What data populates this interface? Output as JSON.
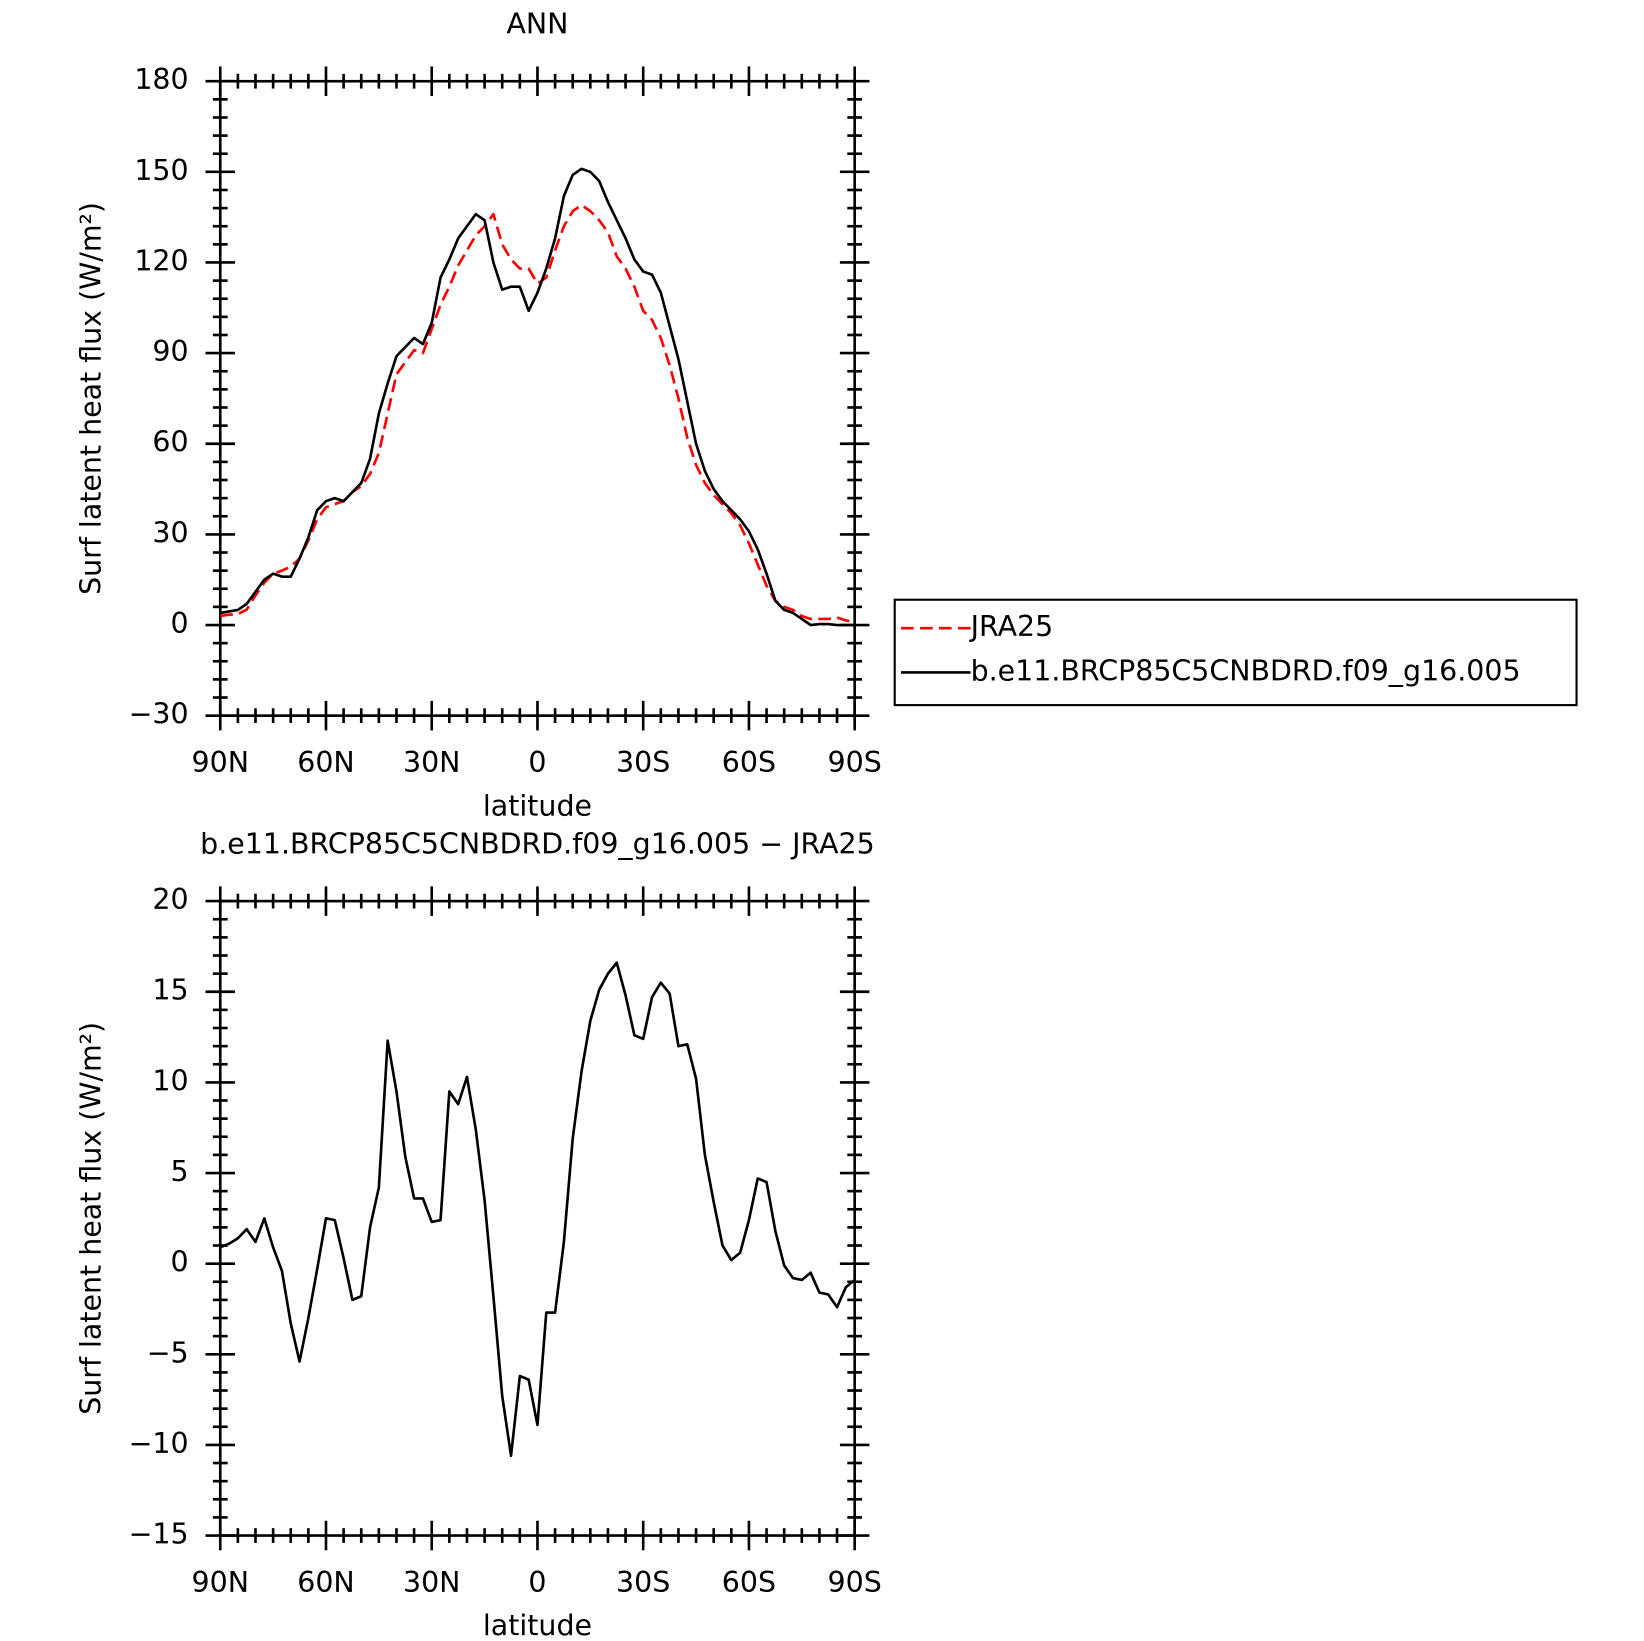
{
  "chart_data": [
    {
      "type": "line",
      "title": "ANN",
      "xlabel": "latitude",
      "ylabel": "Surf latent heat flux (W/m²)",
      "x": [
        90,
        87.5,
        85,
        82.5,
        80,
        77.5,
        75,
        72.5,
        70,
        67.5,
        65,
        62.5,
        60,
        57.5,
        55,
        52.5,
        50,
        47.5,
        45,
        42.5,
        40,
        37.5,
        35,
        32.5,
        30,
        27.5,
        25,
        22.5,
        20,
        17.5,
        15,
        12.5,
        10,
        7.5,
        5,
        2.5,
        0,
        -2.5,
        -5,
        -7.5,
        -10,
        -12.5,
        -15,
        -17.5,
        -20,
        -22.5,
        -25,
        -27.5,
        -30,
        -32.5,
        -35,
        -37.5,
        -40,
        -42.5,
        -45,
        -47.5,
        -50,
        -52.5,
        -55,
        -57.5,
        -60,
        -62.5,
        -65,
        -67.5,
        -70,
        -72.5,
        -75,
        -77.5,
        -80,
        -82.5,
        -85,
        -87.5,
        -90
      ],
      "series": [
        {
          "name": "JRA25",
          "color": "#ff0000",
          "dashed": true,
          "values": [
            3,
            3.4,
            3.6,
            5.1,
            9.8,
            14,
            17,
            18,
            19.3,
            22,
            28,
            35,
            39,
            40,
            41,
            44,
            46,
            50,
            57,
            70,
            83,
            87,
            91,
            90,
            98,
            106,
            112,
            119,
            124,
            129,
            132,
            136,
            126,
            121,
            118,
            118,
            113,
            115,
            124,
            132,
            137,
            139,
            137,
            134,
            130,
            122,
            118,
            112,
            104,
            101,
            95,
            86,
            75,
            62,
            53,
            47,
            43,
            40,
            37,
            33,
            27,
            20,
            13,
            8,
            6,
            5,
            3,
            2,
            2,
            2,
            2.5,
            1.5,
            1
          ]
        },
        {
          "name": "b.e11.BRCP85C5CNBDRD.f09_g16.005",
          "color": "#000000",
          "dashed": false,
          "values": [
            4,
            4.5,
            5,
            7,
            11,
            15,
            17,
            16,
            16,
            22,
            29,
            38,
            41,
            42,
            41,
            44,
            47,
            55,
            70,
            80,
            89,
            92,
            95,
            93,
            100,
            115,
            121,
            128,
            132,
            136,
            134,
            120,
            111,
            112,
            112,
            104,
            110,
            118,
            128,
            142,
            149,
            151,
            150,
            147,
            140,
            134,
            128,
            121,
            117,
            116,
            110,
            99,
            88,
            74,
            60,
            51,
            45,
            41,
            38,
            35,
            31,
            25,
            17,
            8,
            5,
            4,
            2,
            0,
            0.3,
            0.3,
            0,
            0,
            0
          ]
        }
      ],
      "xlim": [
        90,
        -90
      ],
      "xticks": [
        {
          "value": 90,
          "label": "90N"
        },
        {
          "value": 60,
          "label": "60N"
        },
        {
          "value": 30,
          "label": "30N"
        },
        0,
        {
          "value": -30,
          "label": "30S"
        },
        {
          "value": -60,
          "label": "60S"
        },
        {
          "value": -90,
          "label": "90S"
        }
      ],
      "ylim": [
        -30,
        180
      ],
      "yticks": [
        {
          "value": -30,
          "label": "−30"
        },
        0,
        30,
        60,
        90,
        120,
        150,
        180
      ],
      "legend": "right"
    },
    {
      "type": "line",
      "title": "b.e11.BRCP85C5CNBDRD.f09_g16.005 − JRA25",
      "xlabel": "latitude",
      "ylabel": "Surf latent heat flux (W/m²)",
      "x": [
        90,
        87.5,
        85,
        82.5,
        80,
        77.5,
        75,
        72.5,
        70,
        67.5,
        65,
        62.5,
        60,
        57.5,
        55,
        52.5,
        50,
        47.5,
        45,
        42.5,
        40,
        37.5,
        35,
        32.5,
        30,
        27.5,
        25,
        22.5,
        20,
        17.5,
        15,
        12.5,
        10,
        7.5,
        5,
        2.5,
        0,
        -2.5,
        -5,
        -7.5,
        -10,
        -12.5,
        -15,
        -17.5,
        -20,
        -22.5,
        -25,
        -27.5,
        -30,
        -32.5,
        -35,
        -37.5,
        -40,
        -42.5,
        -45,
        -47.5,
        -50,
        -52.5,
        -55,
        -57.5,
        -60,
        -62.5,
        -65,
        -67.5,
        -70,
        -72.5,
        -75,
        -77.5,
        -80,
        -82.5,
        -85,
        -87.5,
        -90
      ],
      "color": "#000000",
      "values": [
        0.9,
        1.1,
        1.4,
        1.9,
        1.2,
        2.5,
        0.9,
        -0.4,
        -3.3,
        -5.4,
        -3.0,
        -0.3,
        2.5,
        2.4,
        0.3,
        -2.0,
        -1.8,
        2.0,
        4.2,
        12.3,
        9.5,
        5.9,
        3.6,
        3.6,
        2.3,
        2.4,
        9.5,
        8.8,
        10.3,
        7.4,
        3.5,
        -1.8,
        -7.3,
        -10.6,
        -6.2,
        -6.4,
        -8.9,
        -2.7,
        -2.7,
        1.2,
        6.9,
        10.6,
        13.4,
        15.1,
        16.0,
        16.6,
        14.8,
        12.6,
        12.4,
        14.7,
        15.5,
        14.9,
        12.0,
        12.1,
        10.2,
        6.0,
        3.4,
        1.0,
        0.2,
        0.6,
        2.4,
        4.7,
        4.5,
        1.8,
        -0.1,
        -0.8,
        -0.9,
        -0.5,
        -1.6,
        -1.7,
        -2.4,
        -1.3,
        -0.9
      ],
      "xlim": [
        90,
        -90
      ],
      "xticks": [
        {
          "value": 90,
          "label": "90N"
        },
        {
          "value": 60,
          "label": "60N"
        },
        {
          "value": 30,
          "label": "30N"
        },
        0,
        {
          "value": -30,
          "label": "30S"
        },
        {
          "value": -60,
          "label": "60S"
        },
        {
          "value": -90,
          "label": "90S"
        }
      ],
      "ylim": [
        -15,
        20
      ],
      "yticks": [
        {
          "value": -15,
          "label": "−15"
        },
        {
          "value": -10,
          "label": "−10"
        },
        {
          "value": -5,
          "label": "−5"
        },
        0,
        5,
        10,
        15,
        20
      ]
    }
  ]
}
